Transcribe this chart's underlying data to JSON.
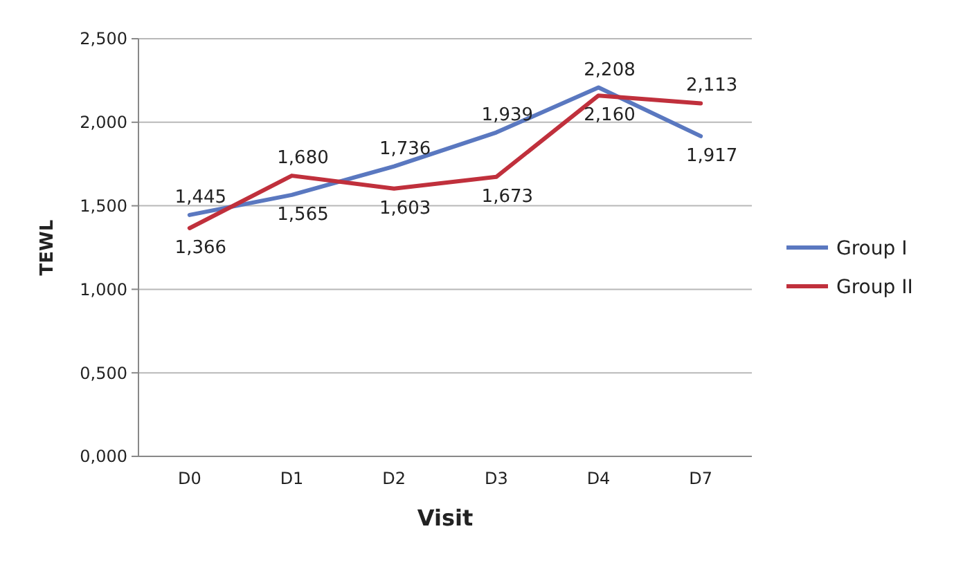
{
  "chart_data": {
    "type": "line",
    "xlabel": "Visit",
    "ylabel": "TEWL",
    "categories": [
      "D0",
      "D1",
      "D2",
      "D3",
      "D4",
      "D7"
    ],
    "series": [
      {
        "name": "Group I",
        "color": "#5a78c0",
        "values": [
          1.445,
          1.565,
          1.736,
          1.939,
          2.208,
          1.917
        ],
        "value_labels": [
          "1,445",
          "1,565",
          "1,736",
          "1,939",
          "2,208",
          "1,917"
        ]
      },
      {
        "name": "Group II",
        "color": "#c0303c",
        "values": [
          1.366,
          1.68,
          1.603,
          1.673,
          2.16,
          2.113
        ],
        "value_labels": [
          "1,366",
          "1,680",
          "1,603",
          "1,673",
          "2,160",
          "2,113"
        ]
      }
    ],
    "ylim": [
      0,
      2.5
    ],
    "yticks": [
      {
        "value": 0,
        "label": "0,000"
      },
      {
        "value": 0.5,
        "label": "0,500"
      },
      {
        "value": 1,
        "label": "1,000"
      },
      {
        "value": 1.5,
        "label": "1,500"
      },
      {
        "value": 2,
        "label": "2,000"
      },
      {
        "value": 2.5,
        "label": "2,500"
      }
    ],
    "grid": "y",
    "legend": "right",
    "marker": "none",
    "line_style": "solid"
  }
}
